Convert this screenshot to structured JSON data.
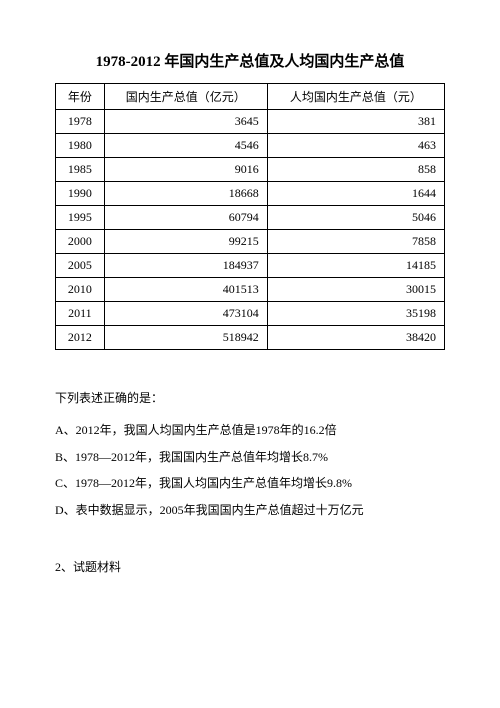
{
  "title": "1978-2012 年国内生产总值及人均国内生产总值",
  "table": {
    "columns": [
      "年份",
      "国内生产总值（亿元）",
      "人均国内生产总值（元）"
    ],
    "rows": [
      [
        "1978",
        "3645",
        "381"
      ],
      [
        "1980",
        "4546",
        "463"
      ],
      [
        "1985",
        "9016",
        "858"
      ],
      [
        "1990",
        "18668",
        "1644"
      ],
      [
        "1995",
        "60794",
        "5046"
      ],
      [
        "2000",
        "99215",
        "7858"
      ],
      [
        "2005",
        "184937",
        "14185"
      ],
      [
        "2010",
        "401513",
        "30015"
      ],
      [
        "2011",
        "473104",
        "35198"
      ],
      [
        "2012",
        "518942",
        "38420"
      ]
    ]
  },
  "question": "下列表述正确的是：",
  "options": [
    "A、2012年，我国人均国内生产总值是1978年的16.2倍",
    "B、1978—2012年，我国国内生产总值年均增长8.7%",
    "C、1978—2012年，我国人均国内生产总值年均增长9.8%",
    "D、表中数据显示，2005年我国国内生产总值超过十万亿元"
  ],
  "section_label": "2、试题材料"
}
